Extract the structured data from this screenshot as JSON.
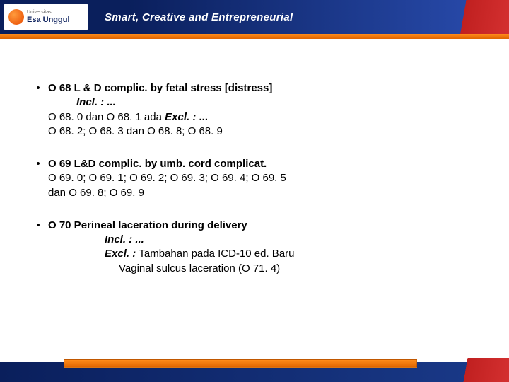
{
  "header": {
    "logo_line1": "Universitas",
    "logo_line2": "Esa Unggul",
    "tagline": "Smart, Creative and Entrepreneurial"
  },
  "items": [
    {
      "title": "O 68 L & D complic. by fetal stress [distress]",
      "l1": "Incl. : ...",
      "l2a": "O 68. 0  dan  O 68. 1  ada  ",
      "l2b": "Excl. :",
      "l2c": " ...",
      "l3": "O 68. 2;  O 68. 3  dan  O 68. 8;  O 68. 9"
    },
    {
      "title": "O 69 L&D complic. by umb. cord complicat.",
      "l1": "O 69. 0;  O 69. 1; O 69. 2;  O 69. 3;  O 69. 4;  O 69. 5",
      "l2": "dan O 69. 8;  O 69. 9"
    },
    {
      "title": "O 70 Perineal laceration during delivery",
      "l1": "Incl. : ...",
      "l2a": "Excl. : ",
      "l2b": " Tambahan pada ICD-10 ed. Baru",
      "l3": "Vaginal sulcus laceration  (O 71. 4)"
    }
  ],
  "colors": {
    "header_blue_dark": "#0a1f5c",
    "header_blue_light": "#2a4db0",
    "orange_top": "#ff8c1a",
    "orange_bottom": "#e06500",
    "red": "#c02020",
    "text": "#000000",
    "bg": "#ffffff"
  },
  "typography": {
    "body_fontsize": 15,
    "tagline_fontsize": 15
  }
}
